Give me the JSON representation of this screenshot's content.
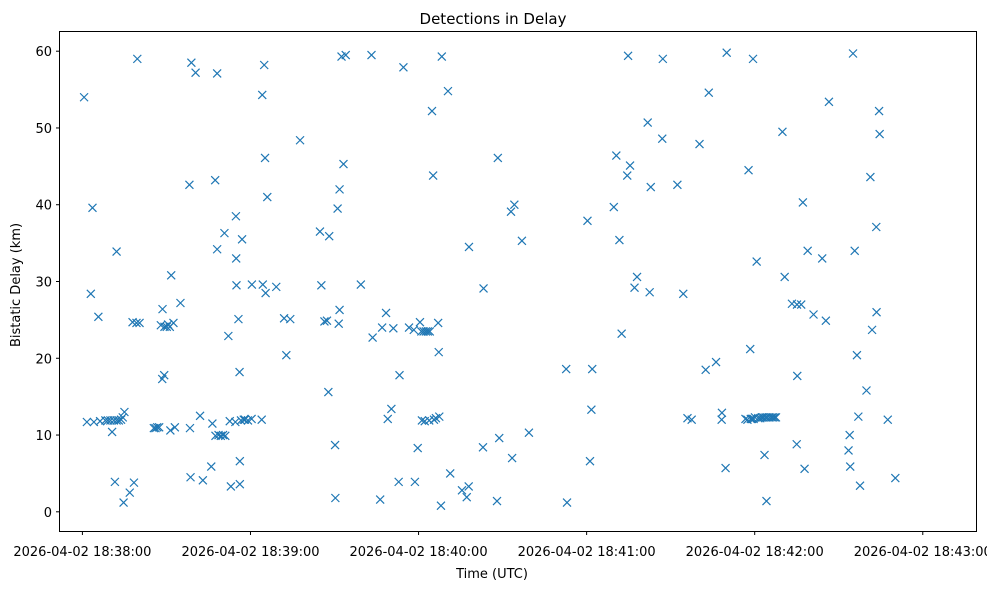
{
  "colors": {
    "marker": "#1f77b4",
    "axis": "#000000",
    "background": "#ffffff"
  },
  "chart_data": {
    "type": "scatter",
    "title": "Detections in Delay",
    "xlabel": "Time (UTC)",
    "ylabel": "Bistatic Delay (km)",
    "marker": "x",
    "x_unit": "seconds after 2026-04-02 18:38:00",
    "xlim": [
      -8,
      319
    ],
    "ylim": [
      -2.5,
      62.5
    ],
    "xticks": [
      {
        "value": 0,
        "label": "2026-04-02 18:38:00"
      },
      {
        "value": 60,
        "label": "2026-04-02 18:39:00"
      },
      {
        "value": 120,
        "label": "2026-04-02 18:40:00"
      },
      {
        "value": 180,
        "label": "2026-04-02 18:41:00"
      },
      {
        "value": 240,
        "label": "2026-04-02 18:42:00"
      },
      {
        "value": 300,
        "label": "2026-04-02 18:43:00"
      }
    ],
    "yticks": [
      {
        "value": 0,
        "label": "0"
      },
      {
        "value": 10,
        "label": "10"
      },
      {
        "value": 20,
        "label": "20"
      },
      {
        "value": 30,
        "label": "30"
      },
      {
        "value": 40,
        "label": "40"
      },
      {
        "value": 50,
        "label": "50"
      },
      {
        "value": 60,
        "label": "60"
      }
    ],
    "points": [
      [
        0.6,
        54.0
      ],
      [
        3.0,
        28.4
      ],
      [
        3.6,
        39.6
      ],
      [
        1.6,
        11.7
      ],
      [
        4.1,
        11.7
      ],
      [
        5.7,
        25.4
      ],
      [
        6.3,
        11.8
      ],
      [
        8.2,
        11.9
      ],
      [
        9.1,
        11.9
      ],
      [
        10.0,
        11.9
      ],
      [
        10.6,
        10.4
      ],
      [
        11.2,
        11.9
      ],
      [
        12.2,
        11.9
      ],
      [
        13.0,
        11.9
      ],
      [
        13.8,
        12.0
      ],
      [
        14.4,
        12.3
      ],
      [
        15.0,
        13.0
      ],
      [
        11.6,
        3.9
      ],
      [
        12.2,
        33.9
      ],
      [
        14.7,
        1.2
      ],
      [
        16.9,
        2.5
      ],
      [
        17.9,
        24.7
      ],
      [
        18.4,
        3.8
      ],
      [
        19.3,
        24.6
      ],
      [
        19.6,
        59.0
      ],
      [
        20.4,
        24.6
      ],
      [
        25.5,
        10.9
      ],
      [
        26.1,
        10.9
      ],
      [
        26.7,
        11.0
      ],
      [
        27.4,
        11.0
      ],
      [
        28.0,
        24.3
      ],
      [
        28.6,
        26.4
      ],
      [
        28.5,
        17.3
      ],
      [
        29.2,
        17.8
      ],
      [
        29.3,
        24.1
      ],
      [
        30.1,
        24.1
      ],
      [
        30.6,
        24.4
      ],
      [
        31.2,
        24.1
      ],
      [
        31.4,
        10.6
      ],
      [
        31.7,
        30.8
      ],
      [
        32.5,
        24.6
      ],
      [
        33.0,
        11.0
      ],
      [
        35.0,
        27.2
      ],
      [
        38.4,
        10.9
      ],
      [
        38.9,
        58.5
      ],
      [
        38.2,
        42.6
      ],
      [
        38.6,
        4.5
      ],
      [
        40.4,
        57.2
      ],
      [
        42.0,
        12.5
      ],
      [
        43.0,
        4.1
      ],
      [
        46.0,
        5.9
      ],
      [
        46.4,
        11.5
      ],
      [
        47.4,
        43.2
      ],
      [
        47.5,
        9.9
      ],
      [
        48.1,
        57.1
      ],
      [
        48.1,
        34.2
      ],
      [
        48.6,
        10.0
      ],
      [
        49.4,
        9.9
      ],
      [
        50.2,
        10.0
      ],
      [
        50.7,
        36.3
      ],
      [
        51.0,
        9.9
      ],
      [
        52.1,
        22.9
      ],
      [
        52.6,
        11.8
      ],
      [
        53.0,
        3.3
      ],
      [
        54.6,
        11.7
      ],
      [
        54.8,
        38.5
      ],
      [
        54.9,
        33.0
      ],
      [
        55.0,
        29.5
      ],
      [
        55.7,
        25.1
      ],
      [
        56.1,
        18.2
      ],
      [
        56.2,
        6.6
      ],
      [
        56.2,
        3.6
      ],
      [
        56.6,
        11.9
      ],
      [
        57.0,
        35.5
      ],
      [
        57.6,
        12.0
      ],
      [
        58.0,
        12.0
      ],
      [
        59.1,
        11.9
      ],
      [
        60.4,
        12.1
      ],
      [
        60.5,
        29.6
      ],
      [
        64.0,
        12.0
      ],
      [
        64.2,
        54.3
      ],
      [
        64.4,
        29.6
      ],
      [
        64.9,
        58.2
      ],
      [
        65.2,
        46.1
      ],
      [
        65.4,
        28.5
      ],
      [
        66.0,
        41.0
      ],
      [
        69.2,
        29.3
      ],
      [
        72.0,
        25.2
      ],
      [
        72.8,
        20.4
      ],
      [
        74.2,
        25.1
      ],
      [
        77.7,
        48.4
      ],
      [
        84.8,
        36.5
      ],
      [
        85.3,
        29.5
      ],
      [
        86.4,
        24.8
      ],
      [
        87.3,
        24.9
      ],
      [
        88.1,
        35.9
      ],
      [
        87.8,
        15.6
      ],
      [
        90.2,
        8.7
      ],
      [
        90.3,
        1.8
      ],
      [
        91.1,
        39.5
      ],
      [
        91.5,
        24.5
      ],
      [
        91.8,
        26.3
      ],
      [
        91.8,
        42.0
      ],
      [
        92.5,
        59.3
      ],
      [
        93.2,
        45.3
      ],
      [
        94.0,
        59.5
      ],
      [
        99.4,
        29.6
      ],
      [
        103.6,
        22.7
      ],
      [
        103.2,
        59.5
      ],
      [
        106.3,
        1.6
      ],
      [
        107.0,
        24.0
      ],
      [
        108.4,
        25.9
      ],
      [
        109.0,
        12.1
      ],
      [
        110.3,
        13.4
      ],
      [
        111.0,
        23.9
      ],
      [
        112.9,
        3.9
      ],
      [
        113.2,
        17.8
      ],
      [
        114.6,
        57.9
      ],
      [
        116.6,
        24.0
      ],
      [
        118.3,
        23.7
      ],
      [
        118.7,
        3.9
      ],
      [
        119.7,
        8.3
      ],
      [
        120.5,
        24.7
      ],
      [
        121.0,
        23.5
      ],
      [
        121.2,
        11.9
      ],
      [
        121.8,
        23.5
      ],
      [
        122.2,
        11.8
      ],
      [
        122.6,
        23.5
      ],
      [
        123.3,
        23.5
      ],
      [
        124.0,
        23.5
      ],
      [
        123.8,
        11.9
      ],
      [
        124.8,
        52.2
      ],
      [
        125.2,
        43.8
      ],
      [
        125.5,
        12.0
      ],
      [
        126.2,
        12.2
      ],
      [
        127.0,
        24.6
      ],
      [
        127.2,
        20.8
      ],
      [
        127.4,
        12.4
      ],
      [
        128.0,
        0.8
      ],
      [
        128.3,
        59.3
      ],
      [
        130.5,
        54.8
      ],
      [
        131.3,
        5.0
      ],
      [
        135.5,
        2.8
      ],
      [
        137.2,
        1.9
      ],
      [
        137.9,
        3.3
      ],
      [
        138.0,
        34.5
      ],
      [
        143.0,
        8.4
      ],
      [
        143.2,
        29.1
      ],
      [
        148.3,
        46.1
      ],
      [
        148.0,
        1.4
      ],
      [
        148.8,
        9.6
      ],
      [
        153.4,
        7.0
      ],
      [
        153.0,
        39.1
      ],
      [
        154.2,
        40.0
      ],
      [
        156.9,
        35.3
      ],
      [
        159.4,
        10.3
      ],
      [
        172.7,
        18.6
      ],
      [
        173.0,
        1.2
      ],
      [
        180.3,
        37.9
      ],
      [
        181.2,
        6.6
      ],
      [
        181.7,
        13.3
      ],
      [
        182.0,
        18.6
      ],
      [
        189.7,
        39.7
      ],
      [
        190.6,
        46.4
      ],
      [
        191.7,
        35.4
      ],
      [
        192.5,
        23.2
      ],
      [
        194.5,
        43.8
      ],
      [
        194.8,
        59.4
      ],
      [
        195.5,
        45.1
      ],
      [
        197.1,
        29.2
      ],
      [
        198.0,
        30.6
      ],
      [
        201.8,
        50.7
      ],
      [
        202.5,
        28.6
      ],
      [
        202.9,
        42.3
      ],
      [
        207.2,
        59.0
      ],
      [
        207.0,
        48.6
      ],
      [
        212.4,
        42.6
      ],
      [
        214.5,
        28.4
      ],
      [
        216.0,
        12.2
      ],
      [
        217.5,
        12.0
      ],
      [
        220.3,
        47.9
      ],
      [
        222.5,
        18.5
      ],
      [
        223.6,
        54.6
      ],
      [
        226.2,
        19.5
      ],
      [
        228.2,
        12.0
      ],
      [
        228.3,
        12.9
      ],
      [
        229.6,
        5.7
      ],
      [
        230.0,
        59.8
      ],
      [
        236.7,
        12.1
      ],
      [
        237.4,
        12.0
      ],
      [
        237.8,
        44.5
      ],
      [
        238.4,
        21.2
      ],
      [
        238.6,
        12.1
      ],
      [
        239.0,
        12.1
      ],
      [
        239.4,
        59.0
      ],
      [
        239.6,
        12.1
      ],
      [
        240.1,
        12.3
      ],
      [
        240.7,
        32.6
      ],
      [
        241.3,
        12.2
      ],
      [
        242.0,
        12.2
      ],
      [
        242.5,
        12.3
      ],
      [
        243.1,
        12.3
      ],
      [
        243.5,
        7.4
      ],
      [
        243.9,
        12.3
      ],
      [
        244.2,
        1.4
      ],
      [
        244.5,
        12.3
      ],
      [
        245.3,
        12.3
      ],
      [
        246.0,
        12.3
      ],
      [
        246.5,
        12.3
      ],
      [
        247.1,
        12.3
      ],
      [
        247.6,
        12.3
      ],
      [
        249.9,
        49.5
      ],
      [
        250.7,
        30.6
      ],
      [
        253.3,
        27.1
      ],
      [
        255.1,
        27.0
      ],
      [
        255.0,
        8.8
      ],
      [
        255.2,
        17.7
      ],
      [
        256.6,
        27.0
      ],
      [
        257.2,
        40.3
      ],
      [
        257.8,
        5.6
      ],
      [
        258.9,
        34.0
      ],
      [
        261.0,
        25.7
      ],
      [
        264.1,
        33.0
      ],
      [
        265.4,
        24.9
      ],
      [
        266.5,
        53.4
      ],
      [
        273.5,
        8.0
      ],
      [
        273.9,
        10.0
      ],
      [
        274.1,
        5.9
      ],
      [
        275.1,
        59.7
      ],
      [
        275.7,
        34.0
      ],
      [
        276.5,
        20.4
      ],
      [
        277.0,
        12.4
      ],
      [
        277.6,
        3.4
      ],
      [
        279.9,
        15.8
      ],
      [
        281.3,
        43.6
      ],
      [
        281.9,
        23.7
      ],
      [
        283.4,
        37.1
      ],
      [
        283.5,
        26.0
      ],
      [
        284.4,
        52.2
      ],
      [
        284.6,
        49.2
      ],
      [
        287.5,
        12.0
      ],
      [
        290.2,
        4.4
      ]
    ]
  }
}
